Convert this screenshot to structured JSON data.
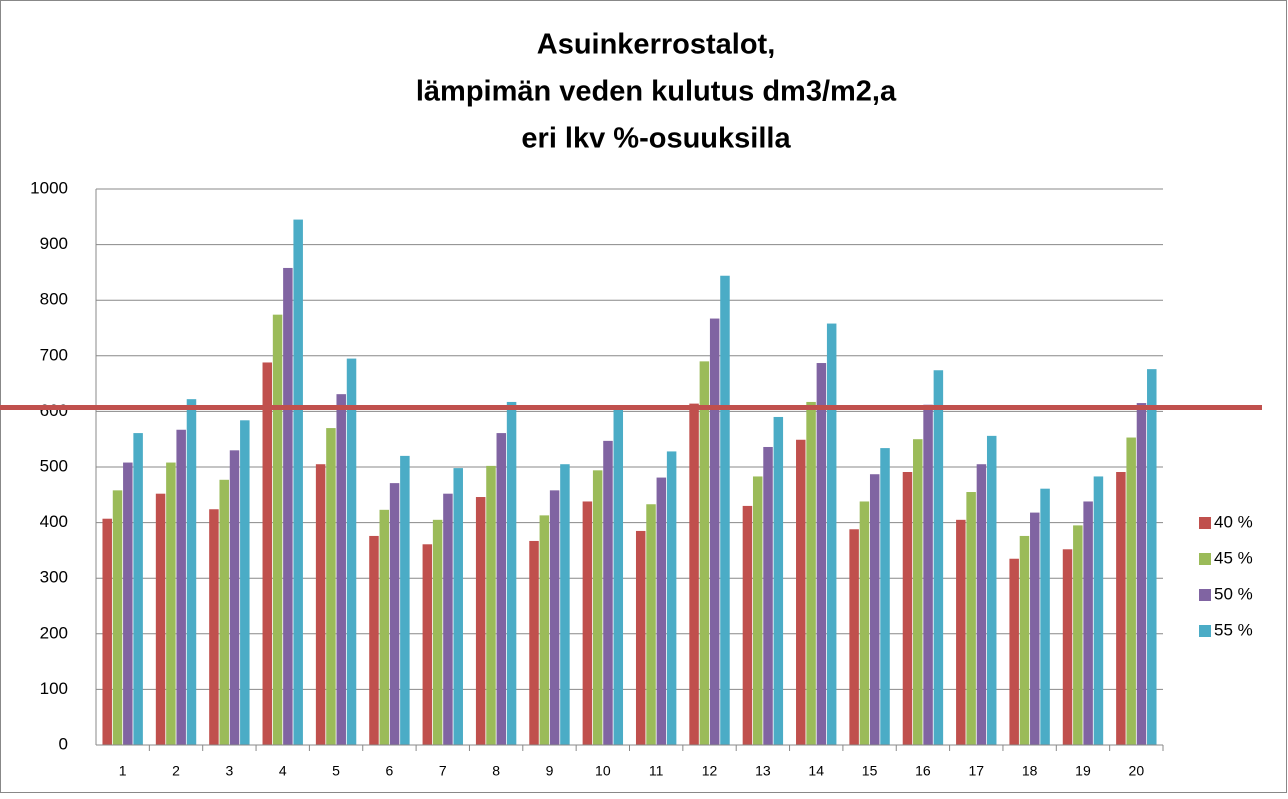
{
  "chart_data": {
    "type": "bar",
    "title": [
      "Asuinkerrostalot,",
      "lämpimän veden kulutus dm3/m2,a",
      "eri lkv %-osuuksilla"
    ],
    "categories": [
      "1",
      "2",
      "3",
      "4",
      "5",
      "6",
      "7",
      "8",
      "9",
      "10",
      "11",
      "12",
      "13",
      "14",
      "15",
      "16",
      "17",
      "18",
      "19",
      "20"
    ],
    "series": [
      {
        "name": "40 %",
        "color": "#c0504d",
        "values": [
          407,
          452,
          424,
          688,
          505,
          376,
          361,
          446,
          367,
          438,
          385,
          614,
          430,
          549,
          388,
          491,
          405,
          335,
          352,
          491
        ]
      },
      {
        "name": "45 %",
        "color": "#9bbb59",
        "values": [
          458,
          508,
          477,
          774,
          570,
          423,
          405,
          502,
          413,
          494,
          433,
          690,
          483,
          617,
          438,
          550,
          455,
          376,
          395,
          553
        ]
      },
      {
        "name": "50 %",
        "color": "#8064a2",
        "values": [
          508,
          567,
          530,
          858,
          631,
          471,
          452,
          561,
          458,
          547,
          481,
          767,
          536,
          687,
          487,
          612,
          505,
          418,
          438,
          615
        ]
      },
      {
        "name": "55 %",
        "color": "#4bacc6",
        "values": [
          561,
          622,
          584,
          945,
          695,
          520,
          498,
          617,
          505,
          605,
          528,
          844,
          590,
          758,
          534,
          674,
          556,
          461,
          483,
          676
        ]
      }
    ],
    "ylim": [
      0,
      1000
    ],
    "yticks": [
      0,
      100,
      200,
      300,
      400,
      500,
      600,
      700,
      800,
      900,
      1000
    ],
    "grid": true,
    "legend": "right",
    "hline": {
      "value": 607,
      "color": "#c0504d"
    }
  }
}
